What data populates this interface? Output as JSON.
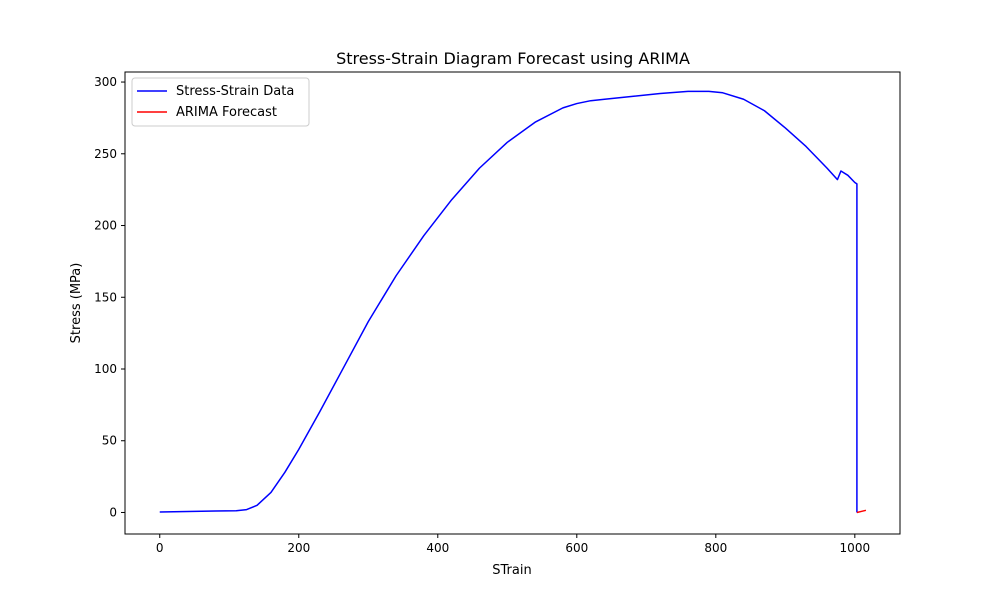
{
  "chart_data": {
    "type": "line",
    "title": "Stress-Strain Diagram Forecast using ARIMA",
    "xlabel": "STrain",
    "ylabel": "Stress (MPa)",
    "xlim": [
      -50,
      1065
    ],
    "ylim": [
      -15,
      307
    ],
    "xticks": [
      0,
      200,
      400,
      600,
      800,
      1000
    ],
    "yticks": [
      0,
      50,
      100,
      150,
      200,
      250,
      300
    ],
    "grid": false,
    "legend": "top-left",
    "series": [
      {
        "name": "Stress-Strain Data",
        "color": "#0000ff",
        "x": [
          0,
          20,
          50,
          80,
          110,
          125,
          140,
          160,
          180,
          200,
          230,
          260,
          300,
          340,
          380,
          420,
          460,
          500,
          540,
          580,
          600,
          620,
          640,
          680,
          720,
          760,
          790,
          810,
          840,
          870,
          900,
          930,
          960,
          975,
          980,
          990,
          1000,
          1003,
          1003
        ],
        "y": [
          0.3,
          0.5,
          0.8,
          1.0,
          1.2,
          2.0,
          5.0,
          14,
          28,
          44,
          70,
          97,
          133,
          165,
          193,
          218,
          240,
          258,
          272,
          282,
          285,
          287,
          288,
          290,
          292,
          293.5,
          293.5,
          292.5,
          288,
          280,
          268,
          255,
          240,
          232,
          238,
          235,
          230,
          229,
          0
        ]
      },
      {
        "name": "ARIMA Forecast",
        "color": "#ff0000",
        "x": [
          1003,
          1010,
          1016
        ],
        "y": [
          0,
          0.8,
          1.5
        ]
      }
    ]
  }
}
